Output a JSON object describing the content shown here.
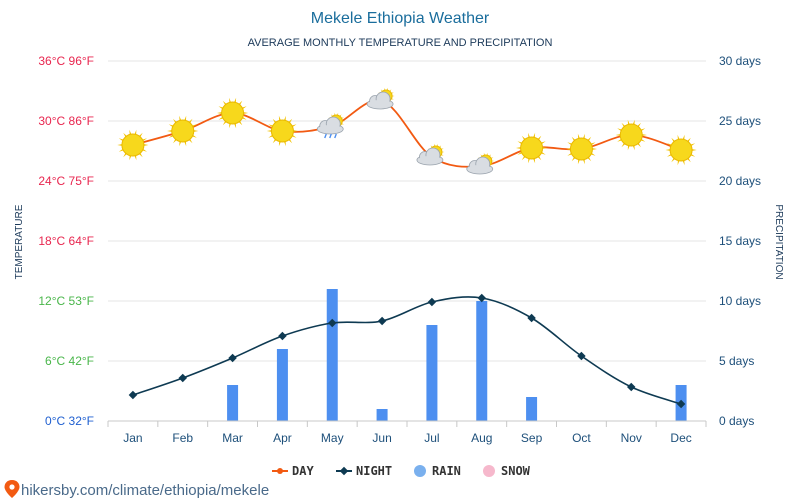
{
  "source_text": "hikersby.com/climate/ethiopia/mekele",
  "colors": {
    "day": "#f25a12",
    "night": "#0e3a52",
    "rain": "#4d8ff0",
    "rain_legend": "#7ab0ee",
    "snow": "#f6b8cc",
    "temp_hot": "#e8264f",
    "temp_mild": "#49b64a",
    "temp_cold": "#1f5fd0",
    "precip_axis": "#1d4f7a",
    "grid": "#e6e6e6"
  },
  "chart_data": {
    "type": "line",
    "title": "Mekele Ethiopia Weather",
    "subtitle": "AVERAGE MONTHLY TEMPERATURE AND PRECIPITATION",
    "ylabel_left": "TEMPERATURE",
    "ylabel_right": "PRECIPITATION",
    "categories": [
      "Jan",
      "Feb",
      "Mar",
      "Apr",
      "May",
      "Jun",
      "Jul",
      "Aug",
      "Sep",
      "Oct",
      "Nov",
      "Dec"
    ],
    "y_left_ticks": [
      {
        "value": 0,
        "label": "0°C 32°F",
        "tone": "cold"
      },
      {
        "value": 6,
        "label": "6°C 42°F",
        "tone": "mild"
      },
      {
        "value": 12,
        "label": "12°C 53°F",
        "tone": "mild"
      },
      {
        "value": 18,
        "label": "18°C 64°F",
        "tone": "hot"
      },
      {
        "value": 24,
        "label": "24°C 75°F",
        "tone": "hot"
      },
      {
        "value": 30,
        "label": "30°C 86°F",
        "tone": "hot"
      },
      {
        "value": 36,
        "label": "36°C 96°F",
        "tone": "hot"
      }
    ],
    "y_right_ticks": [
      {
        "value": 0,
        "label": "0 days"
      },
      {
        "value": 5,
        "label": "5 days"
      },
      {
        "value": 10,
        "label": "10 days"
      },
      {
        "value": 15,
        "label": "15 days"
      },
      {
        "value": 20,
        "label": "20 days"
      },
      {
        "value": 25,
        "label": "25 days"
      },
      {
        "value": 30,
        "label": "30 days"
      }
    ],
    "ylim_left": [
      0,
      36
    ],
    "ylim_right": [
      0,
      30
    ],
    "grid": true,
    "legend_position": "bottom",
    "series": [
      {
        "name": "DAY",
        "kind": "line",
        "axis": "left",
        "values": [
          27.6,
          29.0,
          30.8,
          29.0,
          29.5,
          32.0,
          26.4,
          25.5,
          27.3,
          27.2,
          28.6,
          27.1
        ]
      },
      {
        "name": "NIGHT",
        "kind": "line",
        "axis": "left",
        "values": [
          2.6,
          4.3,
          6.3,
          8.5,
          9.8,
          10.0,
          11.9,
          12.3,
          10.3,
          6.5,
          3.4,
          1.7
        ]
      },
      {
        "name": "RAIN",
        "kind": "bar",
        "axis": "right",
        "values": [
          0,
          0,
          3,
          6,
          11,
          1,
          8,
          10,
          2,
          0,
          0,
          3
        ]
      },
      {
        "name": "SNOW",
        "kind": "bar",
        "axis": "right",
        "values": [
          0,
          0,
          0,
          0,
          0,
          0,
          0,
          0,
          0,
          0,
          0,
          0
        ]
      }
    ],
    "weather_icons": [
      "sun-icon",
      "sun-icon",
      "sun-icon",
      "sun-icon",
      "partly-cloudy-rain-icon",
      "partly-cloudy-icon",
      "partly-cloudy-icon",
      "partly-cloudy-icon",
      "sun-icon",
      "sun-icon",
      "sun-icon",
      "sun-icon"
    ]
  }
}
